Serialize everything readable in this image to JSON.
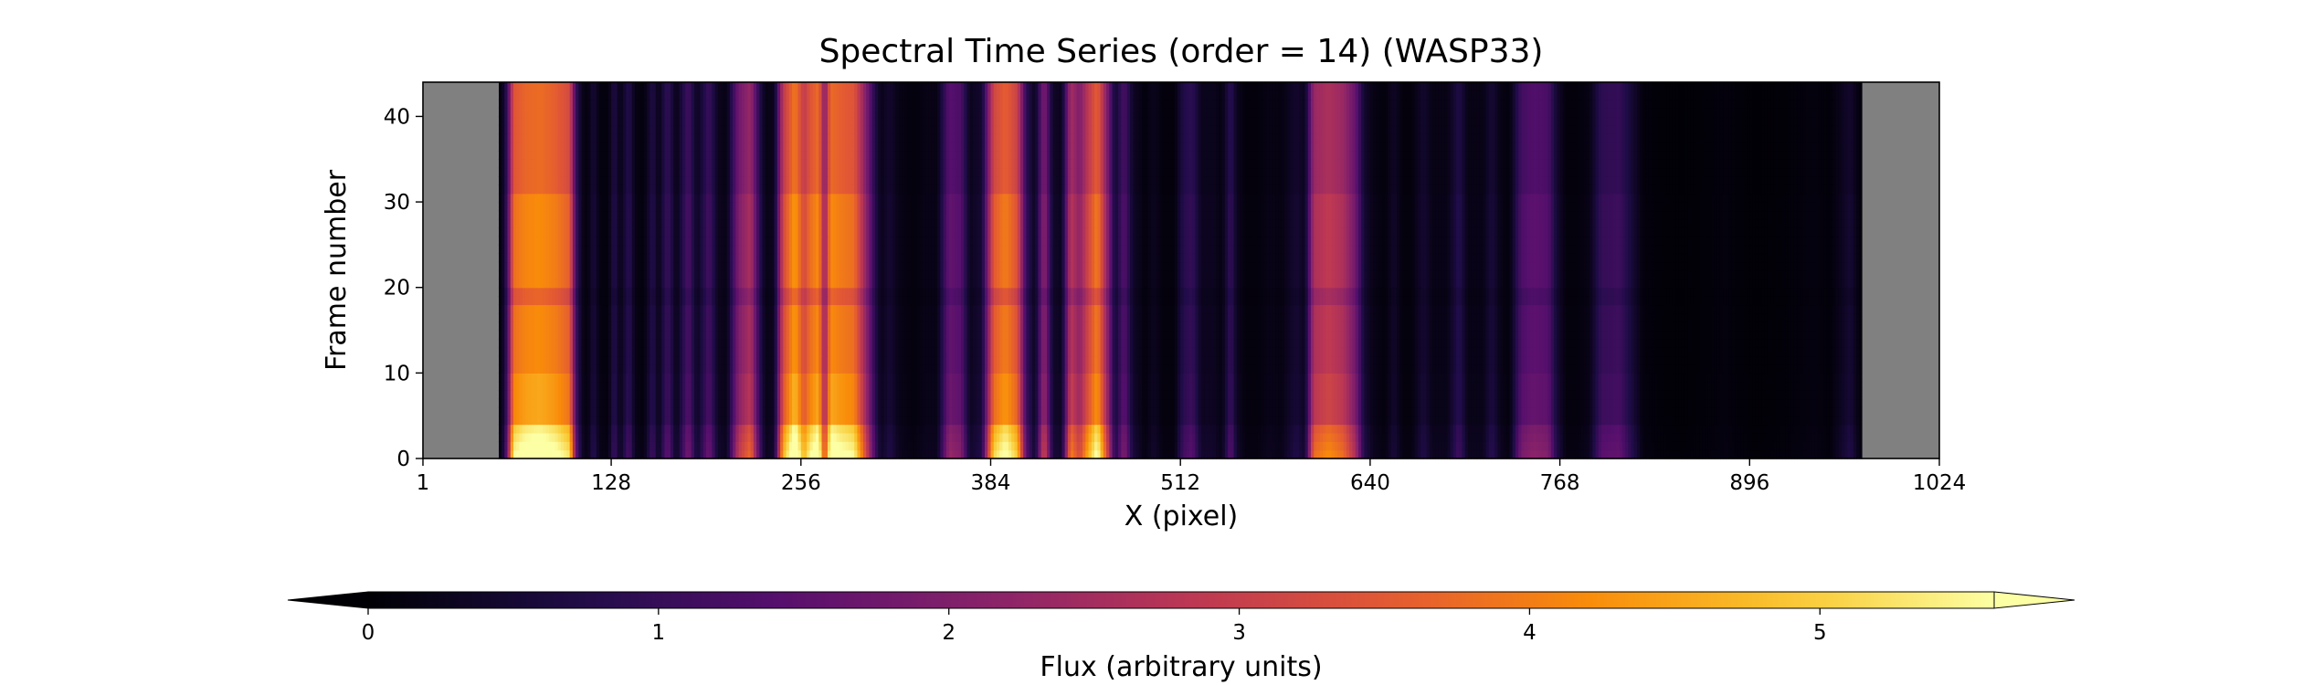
{
  "chart_data": {
    "type": "heatmap",
    "title": "Spectral Time Series (order = 14) (WASP33)",
    "xlabel": "X (pixel)",
    "ylabel": "Frame number",
    "xlim": [
      1,
      1024
    ],
    "ylim": [
      0,
      44
    ],
    "xticks": [
      1,
      128,
      256,
      384,
      512,
      640,
      768,
      896,
      1024
    ],
    "yticks": [
      0,
      10,
      20,
      30,
      40
    ],
    "masked_ranges": [
      [
        1,
        52
      ],
      [
        972,
        1024
      ]
    ],
    "masked_color": "#808080",
    "colormap": "inferno",
    "colorbar": {
      "label": "Flux (arbitrary units)",
      "ticks": [
        0,
        1,
        2,
        3,
        4,
        5
      ],
      "range": [
        0,
        5.6
      ],
      "extend": "both",
      "orientation": "horizontal"
    },
    "column_profile": [
      [
        52,
        0.2
      ],
      [
        54,
        0.1
      ],
      [
        58,
        1.2
      ],
      [
        62,
        3.8
      ],
      [
        70,
        4.1
      ],
      [
        80,
        4.2
      ],
      [
        90,
        4.0
      ],
      [
        100,
        3.6
      ],
      [
        104,
        1.2
      ],
      [
        108,
        0.3
      ],
      [
        112,
        0.1
      ],
      [
        116,
        0.6
      ],
      [
        120,
        0.15
      ],
      [
        126,
        0.1
      ],
      [
        130,
        0.8
      ],
      [
        134,
        0.2
      ],
      [
        140,
        0.9
      ],
      [
        144,
        0.2
      ],
      [
        150,
        0.1
      ],
      [
        156,
        0.8
      ],
      [
        160,
        0.2
      ],
      [
        166,
        1.1
      ],
      [
        172,
        0.2
      ],
      [
        180,
        1.3
      ],
      [
        186,
        0.3
      ],
      [
        194,
        1.2
      ],
      [
        200,
        0.3
      ],
      [
        206,
        0.2
      ],
      [
        214,
        2.0
      ],
      [
        222,
        2.6
      ],
      [
        228,
        0.9
      ],
      [
        232,
        0.2
      ],
      [
        238,
        0.3
      ],
      [
        244,
        3.2
      ],
      [
        252,
        4.4
      ],
      [
        258,
        3.2
      ],
      [
        262,
        3.8
      ],
      [
        268,
        4.2
      ],
      [
        272,
        2.2
      ],
      [
        276,
        4.2
      ],
      [
        282,
        4.0
      ],
      [
        292,
        3.8
      ],
      [
        300,
        2.2
      ],
      [
        306,
        0.8
      ],
      [
        310,
        0.25
      ],
      [
        316,
        0.5
      ],
      [
        322,
        0.2
      ],
      [
        332,
        0.1
      ],
      [
        340,
        0.2
      ],
      [
        348,
        0.2
      ],
      [
        356,
        1.6
      ],
      [
        364,
        1.4
      ],
      [
        370,
        0.3
      ],
      [
        378,
        0.5
      ],
      [
        386,
        3.5
      ],
      [
        394,
        4.0
      ],
      [
        402,
        3.4
      ],
      [
        408,
        1.0
      ],
      [
        414,
        0.3
      ],
      [
        420,
        2.2
      ],
      [
        426,
        0.4
      ],
      [
        432,
        0.3
      ],
      [
        438,
        2.8
      ],
      [
        444,
        2.2
      ],
      [
        450,
        3.2
      ],
      [
        456,
        4.0
      ],
      [
        462,
        2.4
      ],
      [
        468,
        0.5
      ],
      [
        474,
        1.4
      ],
      [
        480,
        0.4
      ],
      [
        488,
        0.1
      ],
      [
        494,
        0.3
      ],
      [
        500,
        0.1
      ],
      [
        508,
        0.1
      ],
      [
        514,
        0.8
      ],
      [
        520,
        1.0
      ],
      [
        526,
        0.3
      ],
      [
        534,
        0.3
      ],
      [
        540,
        0.15
      ],
      [
        546,
        1.0
      ],
      [
        550,
        0.3
      ],
      [
        556,
        0.1
      ],
      [
        564,
        0.1
      ],
      [
        572,
        0.2
      ],
      [
        580,
        0.15
      ],
      [
        590,
        0.5
      ],
      [
        596,
        0.3
      ],
      [
        602,
        2.6
      ],
      [
        612,
        2.9
      ],
      [
        622,
        2.6
      ],
      [
        630,
        1.8
      ],
      [
        636,
        0.5
      ],
      [
        642,
        0.2
      ],
      [
        650,
        0.1
      ],
      [
        656,
        0.4
      ],
      [
        662,
        0.1
      ],
      [
        668,
        0.1
      ],
      [
        676,
        0.5
      ],
      [
        682,
        0.2
      ],
      [
        692,
        0.2
      ],
      [
        700,
        0.8
      ],
      [
        706,
        0.2
      ],
      [
        716,
        0.2
      ],
      [
        722,
        0.6
      ],
      [
        728,
        0.2
      ],
      [
        734,
        0.1
      ],
      [
        742,
        1.3
      ],
      [
        750,
        1.5
      ],
      [
        760,
        1.4
      ],
      [
        766,
        0.5
      ],
      [
        772,
        0.1
      ],
      [
        780,
        0.1
      ],
      [
        788,
        0.2
      ],
      [
        796,
        1.0
      ],
      [
        808,
        1.1
      ],
      [
        816,
        0.6
      ],
      [
        824,
        0.1
      ],
      [
        834,
        0.05
      ],
      [
        850,
        0.03
      ],
      [
        870,
        0.06
      ],
      [
        880,
        0.1
      ],
      [
        886,
        0.06
      ],
      [
        900,
        0.03
      ],
      [
        920,
        0.05
      ],
      [
        940,
        0.12
      ],
      [
        950,
        0.05
      ],
      [
        958,
        0.3
      ],
      [
        964,
        0.5
      ],
      [
        970,
        0.1
      ],
      [
        972,
        0.1
      ]
    ],
    "bright_frame_range": [
      0,
      4
    ],
    "dim_frame_rows": [
      18,
      19
    ]
  }
}
